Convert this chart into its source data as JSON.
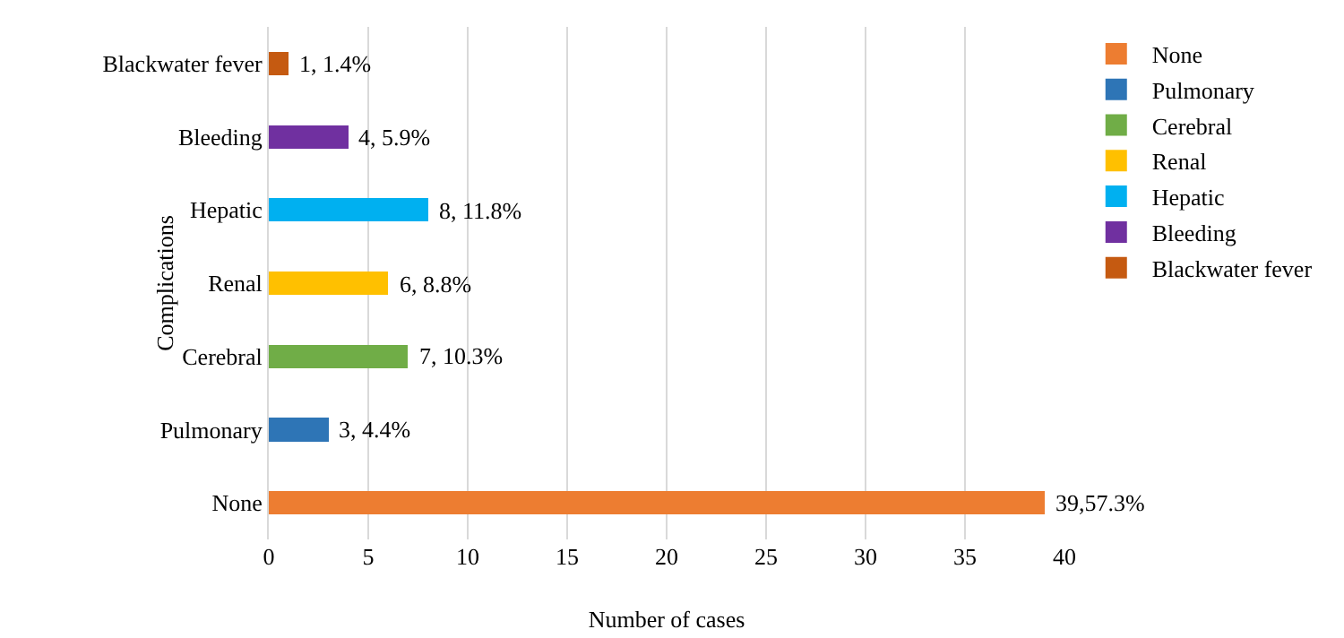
{
  "chart_data": {
    "type": "bar",
    "orientation": "horizontal",
    "stacked": true,
    "categories": [
      "Blackwater fever",
      "Bleeding",
      "Hepatic",
      "Renal",
      "Cerebral",
      "Pulmonary",
      "None"
    ],
    "series": [
      {
        "name": "None",
        "color": "#ed7d31",
        "values": [
          null,
          null,
          null,
          null,
          null,
          null,
          39
        ],
        "value_labels": [
          null,
          null,
          null,
          null,
          null,
          null,
          "39,57.3%"
        ]
      },
      {
        "name": "Pulmonary",
        "color": "#2e75b6",
        "values": [
          null,
          null,
          null,
          null,
          null,
          3,
          null
        ],
        "value_labels": [
          null,
          null,
          null,
          null,
          null,
          "3, 4.4%",
          null
        ]
      },
      {
        "name": "Cerebral",
        "color": "#70ad47",
        "values": [
          null,
          null,
          null,
          null,
          7,
          null,
          null
        ],
        "value_labels": [
          null,
          null,
          null,
          null,
          "7, 10.3%",
          null,
          null
        ]
      },
      {
        "name": "Renal",
        "color": "#ffc000",
        "values": [
          null,
          null,
          null,
          6,
          null,
          null,
          null
        ],
        "value_labels": [
          null,
          null,
          null,
          "6, 8.8%",
          null,
          null,
          null
        ]
      },
      {
        "name": "Hepatic",
        "color": "#00b0f0",
        "values": [
          null,
          null,
          8,
          null,
          null,
          null,
          null
        ],
        "value_labels": [
          null,
          null,
          "8, 11.8%",
          null,
          null,
          null,
          null
        ]
      },
      {
        "name": "Bleeding",
        "color": "#7030a0",
        "values": [
          null,
          4,
          null,
          null,
          null,
          null,
          null
        ],
        "value_labels": [
          null,
          "4, 5.9%",
          null,
          null,
          null,
          null,
          null
        ]
      },
      {
        "name": "Blackwater fever",
        "color": "#c55a11",
        "values": [
          1,
          null,
          null,
          null,
          null,
          null,
          null
        ],
        "value_labels": [
          "1, 1.4%",
          null,
          null,
          null,
          null,
          null,
          null
        ]
      }
    ],
    "xlim": [
      0,
      40
    ],
    "xticks": [
      0,
      5,
      10,
      15,
      20,
      25,
      30,
      35,
      40
    ],
    "xlabel": "Number of cases",
    "ylabel": "Complications",
    "grid": "x",
    "legend": "right"
  }
}
